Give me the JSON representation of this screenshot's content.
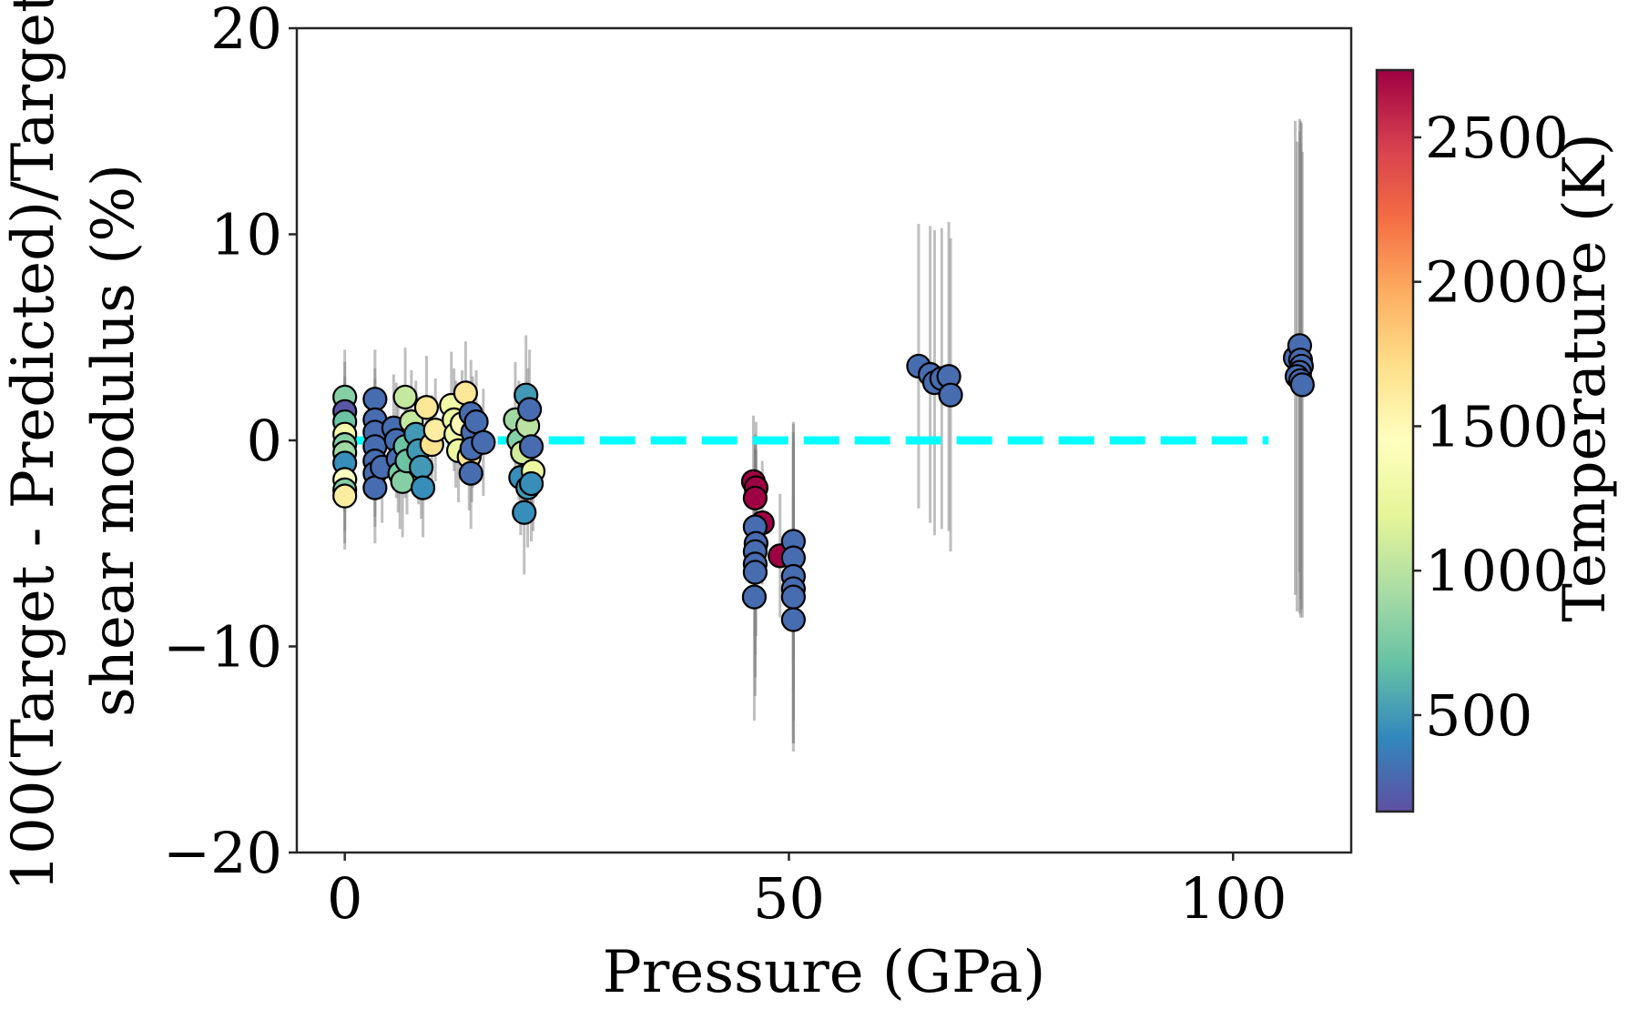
{
  "chart_data": {
    "type": "scatter",
    "title": "",
    "xlabel": "Pressure (GPa)",
    "ylabel_lines": [
      "100(Target - Predicted)/Target",
      "shear modulus (%)"
    ],
    "xlim": [
      -5.4,
      113.3
    ],
    "ylim": [
      -20,
      20
    ],
    "xticks": [
      0,
      50,
      100
    ],
    "xtick_labels": [
      "0",
      "50",
      "100"
    ],
    "yticks": [
      -20,
      -10,
      0,
      10,
      20
    ],
    "ytick_labels": [
      "−20",
      "−10",
      "0",
      "10",
      "20"
    ],
    "grid": false,
    "reference_line": {
      "y": 0,
      "x_range": [
        0,
        104
      ],
      "style": "dashed",
      "color": "#00ffff"
    },
    "errorbar_color": "#808080",
    "marker_edge_color": "#000000",
    "colorbar": {
      "label": "Temperature (K)",
      "range": [
        166,
        2733
      ],
      "ticks": [
        500,
        1000,
        1500,
        2000,
        2500
      ],
      "tick_labels": [
        "500",
        "1000",
        "1500",
        "2000",
        "2500"
      ],
      "colormap": "Spectral_r",
      "colormap_stops": [
        "#5e4fa2",
        "#3288bd",
        "#66c2a5",
        "#abdda4",
        "#e6f598",
        "#ffffbf",
        "#fee08b",
        "#fdae61",
        "#f46d43",
        "#d53e4f",
        "#9e0142"
      ]
    },
    "points": [
      {
        "x": 0.0,
        "y": 2.1,
        "t": 800,
        "err": 2.3
      },
      {
        "x": 0.0,
        "y": 1.4,
        "t": 200,
        "err": 2.4
      },
      {
        "x": 0.0,
        "y": 0.9,
        "t": 700,
        "err": 2.2
      },
      {
        "x": 0.0,
        "y": 0.3,
        "t": 1300,
        "err": 2.5
      },
      {
        "x": 0.0,
        "y": -0.2,
        "t": 800,
        "err": 2.4
      },
      {
        "x": 0.0,
        "y": -0.6,
        "t": 900,
        "err": 2.3
      },
      {
        "x": 0.0,
        "y": -1.1,
        "t": 450,
        "err": 2.4
      },
      {
        "x": 0.0,
        "y": -1.9,
        "t": 1450,
        "err": 2.5
      },
      {
        "x": 0.0,
        "y": -2.4,
        "t": 800,
        "err": 2.6
      },
      {
        "x": 0.0,
        "y": -2.7,
        "t": 1600,
        "err": 2.6
      },
      {
        "x": 3.4,
        "y": 2.0,
        "t": 300,
        "err": 2.4
      },
      {
        "x": 3.4,
        "y": 1.0,
        "t": 300,
        "err": 2.5
      },
      {
        "x": 3.4,
        "y": 0.4,
        "t": 300,
        "err": 2.6
      },
      {
        "x": 3.4,
        "y": -0.3,
        "t": 300,
        "err": 2.6
      },
      {
        "x": 3.4,
        "y": -1.0,
        "t": 300,
        "err": 2.7
      },
      {
        "x": 3.4,
        "y": -1.6,
        "t": 300,
        "err": 2.6
      },
      {
        "x": 3.4,
        "y": -2.3,
        "t": 300,
        "err": 2.7
      },
      {
        "x": 4.2,
        "y": -1.3,
        "t": 300,
        "err": 2.7
      },
      {
        "x": 5.5,
        "y": 0.6,
        "t": 300,
        "err": 2.6
      },
      {
        "x": 5.8,
        "y": 0.0,
        "t": 300,
        "err": 2.8
      },
      {
        "x": 6.0,
        "y": -0.9,
        "t": 300,
        "err": 2.6
      },
      {
        "x": 6.2,
        "y": -1.6,
        "t": 750,
        "err": 2.7
      },
      {
        "x": 6.5,
        "y": -2.0,
        "t": 800,
        "err": 2.7
      },
      {
        "x": 6.8,
        "y": -0.3,
        "t": 700,
        "err": 2.5
      },
      {
        "x": 7.0,
        "y": -1.0,
        "t": 700,
        "err": 2.6
      },
      {
        "x": 6.8,
        "y": 2.1,
        "t": 1050,
        "err": 2.4
      },
      {
        "x": 7.5,
        "y": 0.9,
        "t": 1050,
        "err": 2.5
      },
      {
        "x": 8.0,
        "y": 0.3,
        "t": 500,
        "err": 2.6
      },
      {
        "x": 8.3,
        "y": -0.5,
        "t": 500,
        "err": 2.6
      },
      {
        "x": 8.6,
        "y": -1.3,
        "t": 500,
        "err": 2.5
      },
      {
        "x": 8.8,
        "y": -2.3,
        "t": 450,
        "err": 2.4
      },
      {
        "x": 9.2,
        "y": 1.6,
        "t": 1650,
        "err": 2.5
      },
      {
        "x": 9.8,
        "y": -0.2,
        "t": 1700,
        "err": 2.4
      },
      {
        "x": 10.2,
        "y": 0.5,
        "t": 1600,
        "err": 2.5
      },
      {
        "x": 12.0,
        "y": 1.7,
        "t": 1300,
        "err": 2.6
      },
      {
        "x": 12.3,
        "y": 1.0,
        "t": 1250,
        "err": 2.5
      },
      {
        "x": 12.5,
        "y": 0.3,
        "t": 1300,
        "err": 2.6
      },
      {
        "x": 12.8,
        "y": -0.5,
        "t": 1250,
        "err": 2.5
      },
      {
        "x": 13.2,
        "y": 0.8,
        "t": 1500,
        "err": 2.6
      },
      {
        "x": 13.6,
        "y": 2.3,
        "t": 1650,
        "err": 2.5
      },
      {
        "x": 14.0,
        "y": -0.8,
        "t": 1650,
        "err": 2.6
      },
      {
        "x": 14.2,
        "y": 1.3,
        "t": 300,
        "err": 2.6
      },
      {
        "x": 14.4,
        "y": 0.4,
        "t": 300,
        "err": 2.7
      },
      {
        "x": 14.3,
        "y": -0.4,
        "t": 300,
        "err": 2.6
      },
      {
        "x": 14.2,
        "y": -1.6,
        "t": 300,
        "err": 2.7
      },
      {
        "x": 14.8,
        "y": 0.9,
        "t": 300,
        "err": 2.5
      },
      {
        "x": 15.6,
        "y": -0.1,
        "t": 300,
        "err": 2.6
      },
      {
        "x": 19.2,
        "y": 1.0,
        "t": 900,
        "err": 2.8
      },
      {
        "x": 19.6,
        "y": 0.0,
        "t": 800,
        "err": 2.9
      },
      {
        "x": 19.8,
        "y": -1.8,
        "t": 450,
        "err": 2.8
      },
      {
        "x": 20.0,
        "y": -0.6,
        "t": 1100,
        "err": 2.8
      },
      {
        "x": 20.2,
        "y": -3.5,
        "t": 450,
        "err": 3.0
      },
      {
        "x": 20.4,
        "y": 2.2,
        "t": 500,
        "err": 2.9
      },
      {
        "x": 20.6,
        "y": 0.7,
        "t": 1000,
        "err": 2.8
      },
      {
        "x": 20.6,
        "y": -2.3,
        "t": 500,
        "err": 2.9
      },
      {
        "x": 20.8,
        "y": 1.5,
        "t": 300,
        "err": 2.9
      },
      {
        "x": 21.0,
        "y": -0.3,
        "t": 300,
        "err": 2.8
      },
      {
        "x": 21.2,
        "y": -1.5,
        "t": 1250,
        "err": 2.9
      },
      {
        "x": 21.0,
        "y": -2.1,
        "t": 450,
        "err": 2.8
      },
      {
        "x": 46.0,
        "y": -2.0,
        "t": 2730,
        "err": 3.2
      },
      {
        "x": 46.3,
        "y": -2.3,
        "t": 2730,
        "err": 3.2
      },
      {
        "x": 46.2,
        "y": -2.8,
        "t": 2730,
        "err": 3.1
      },
      {
        "x": 47.0,
        "y": -4.0,
        "t": 2730,
        "err": 3.0
      },
      {
        "x": 46.2,
        "y": -4.2,
        "t": 300,
        "err": 4.0
      },
      {
        "x": 46.3,
        "y": -5.0,
        "t": 300,
        "err": 4.5
      },
      {
        "x": 46.2,
        "y": -5.4,
        "t": 300,
        "err": 5.0
      },
      {
        "x": 46.2,
        "y": -6.0,
        "t": 300,
        "err": 5.5
      },
      {
        "x": 46.2,
        "y": -6.4,
        "t": 300,
        "err": 6.0
      },
      {
        "x": 46.1,
        "y": -7.6,
        "t": 300,
        "err": 6.0
      },
      {
        "x": 49.0,
        "y": -5.6,
        "t": 2730,
        "err": 3.0
      },
      {
        "x": 50.5,
        "y": -4.9,
        "t": 300,
        "err": 5.8
      },
      {
        "x": 50.5,
        "y": -5.7,
        "t": 300,
        "err": 6.5
      },
      {
        "x": 50.5,
        "y": -6.6,
        "t": 300,
        "err": 7.0
      },
      {
        "x": 50.5,
        "y": -7.2,
        "t": 300,
        "err": 7.5
      },
      {
        "x": 50.5,
        "y": -7.6,
        "t": 300,
        "err": 7.5
      },
      {
        "x": 50.5,
        "y": -8.7,
        "t": 300,
        "err": 6.0
      },
      {
        "x": 64.6,
        "y": 3.6,
        "t": 300,
        "err": 6.9
      },
      {
        "x": 65.9,
        "y": 3.2,
        "t": 300,
        "err": 7.2
      },
      {
        "x": 66.4,
        "y": 2.8,
        "t": 300,
        "err": 7.4
      },
      {
        "x": 67.2,
        "y": 3.0,
        "t": 300,
        "err": 7.3
      },
      {
        "x": 68.0,
        "y": 3.1,
        "t": 300,
        "err": 7.5
      },
      {
        "x": 68.2,
        "y": 2.2,
        "t": 300,
        "err": 7.6
      },
      {
        "x": 107.0,
        "y": 4.0,
        "t": 300,
        "err": 11.5
      },
      {
        "x": 107.5,
        "y": 4.6,
        "t": 300,
        "err": 11.0
      },
      {
        "x": 107.6,
        "y": 3.9,
        "t": 300,
        "err": 11.6
      },
      {
        "x": 107.7,
        "y": 3.6,
        "t": 300,
        "err": 11.8
      },
      {
        "x": 107.5,
        "y": 3.3,
        "t": 300,
        "err": 11.7
      },
      {
        "x": 107.2,
        "y": 3.1,
        "t": 300,
        "err": 11.4
      },
      {
        "x": 107.6,
        "y": 2.9,
        "t": 300,
        "err": 11.5
      },
      {
        "x": 107.8,
        "y": 2.7,
        "t": 300,
        "err": 11.3
      }
    ]
  }
}
